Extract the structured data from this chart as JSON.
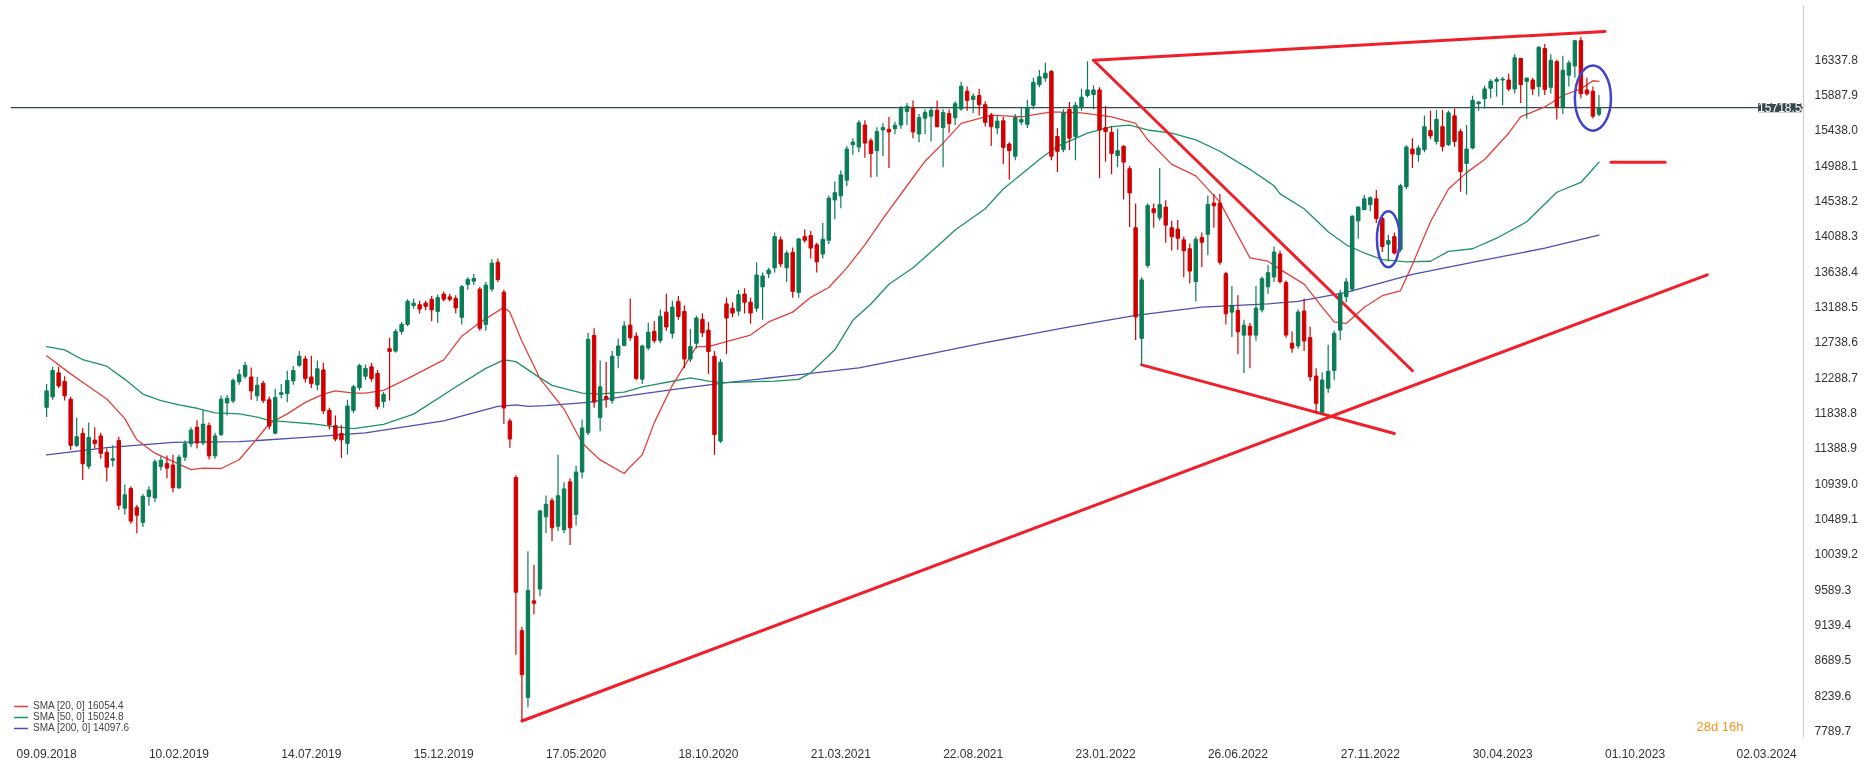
{
  "chart_data": {
    "type": "candlestick",
    "x": [
      "2018-09-09",
      "2018-09-16",
      "2018-09-23",
      "2018-09-30",
      "2018-10-07",
      "2018-10-14",
      "2018-10-21",
      "2018-10-28",
      "2018-11-04",
      "2018-11-11",
      "2018-11-18",
      "2018-11-25",
      "2018-12-02",
      "2018-12-09",
      "2018-12-16",
      "2018-12-23",
      "2018-12-30",
      "2019-01-06",
      "2019-01-13",
      "2019-01-20",
      "2019-01-27",
      "2019-02-03",
      "2019-02-10",
      "2019-02-17",
      "2019-02-24",
      "2019-03-03",
      "2019-03-10",
      "2019-03-17",
      "2019-03-24",
      "2019-03-31",
      "2019-04-07",
      "2019-04-14",
      "2019-04-21",
      "2019-04-28",
      "2019-05-05",
      "2019-05-12",
      "2019-05-19",
      "2019-05-26",
      "2019-06-02",
      "2019-06-09",
      "2019-06-16",
      "2019-06-23",
      "2019-06-30",
      "2019-07-07",
      "2019-07-14",
      "2019-07-21",
      "2019-07-28",
      "2019-08-04",
      "2019-08-11",
      "2019-08-18",
      "2019-08-25",
      "2019-09-01",
      "2019-09-08",
      "2019-09-15",
      "2019-09-22",
      "2019-09-29",
      "2019-10-06",
      "2019-10-13",
      "2019-10-20",
      "2019-10-27",
      "2019-11-03",
      "2019-11-10",
      "2019-11-17",
      "2019-11-24",
      "2019-12-01",
      "2019-12-08",
      "2019-12-15",
      "2019-12-22",
      "2019-12-29",
      "2020-01-05",
      "2020-01-12",
      "2020-01-19",
      "2020-01-26",
      "2020-02-02",
      "2020-02-09",
      "2020-02-16",
      "2020-02-23",
      "2020-03-01",
      "2020-03-08",
      "2020-03-15",
      "2020-03-22",
      "2020-03-29",
      "2020-04-05",
      "2020-04-12",
      "2020-04-19",
      "2020-04-26",
      "2020-05-03",
      "2020-05-10",
      "2020-05-17",
      "2020-05-24",
      "2020-05-31",
      "2020-06-07",
      "2020-06-14",
      "2020-06-21",
      "2020-06-28",
      "2020-07-05",
      "2020-07-12",
      "2020-07-19",
      "2020-07-26",
      "2020-08-02",
      "2020-08-09",
      "2020-08-16",
      "2020-08-23",
      "2020-08-30",
      "2020-09-06",
      "2020-09-13",
      "2020-09-20",
      "2020-09-27",
      "2020-10-04",
      "2020-10-11",
      "2020-10-18",
      "2020-10-25",
      "2020-11-01",
      "2020-11-08",
      "2020-11-15",
      "2020-11-22",
      "2020-11-29",
      "2020-12-06",
      "2020-12-13",
      "2020-12-20",
      "2020-12-27",
      "2021-01-03",
      "2021-01-10",
      "2021-01-17",
      "2021-01-24",
      "2021-01-31",
      "2021-02-07",
      "2021-02-14",
      "2021-02-21",
      "2021-02-28",
      "2021-03-07",
      "2021-03-14",
      "2021-03-21",
      "2021-03-28",
      "2021-04-04",
      "2021-04-11",
      "2021-04-18",
      "2021-04-25",
      "2021-05-02",
      "2021-05-09",
      "2021-05-16",
      "2021-05-23",
      "2021-05-30",
      "2021-06-06",
      "2021-06-13",
      "2021-06-20",
      "2021-06-27",
      "2021-07-04",
      "2021-07-11",
      "2021-07-18",
      "2021-07-25",
      "2021-08-01",
      "2021-08-08",
      "2021-08-15",
      "2021-08-22",
      "2021-08-29",
      "2021-09-05",
      "2021-09-12",
      "2021-09-19",
      "2021-09-26",
      "2021-10-03",
      "2021-10-10",
      "2021-10-17",
      "2021-10-24",
      "2021-10-31",
      "2021-11-07",
      "2021-11-14",
      "2021-11-21",
      "2021-11-28",
      "2021-12-05",
      "2021-12-12",
      "2021-12-19",
      "2021-12-26",
      "2022-01-02",
      "2022-01-09",
      "2022-01-16",
      "2022-01-23",
      "2022-01-30",
      "2022-02-06",
      "2022-02-13",
      "2022-02-20",
      "2022-02-27",
      "2022-03-06",
      "2022-03-13",
      "2022-03-20",
      "2022-03-27",
      "2022-04-03",
      "2022-04-10",
      "2022-04-17",
      "2022-04-24",
      "2022-05-01",
      "2022-05-08",
      "2022-05-15",
      "2022-05-22",
      "2022-05-29",
      "2022-06-05",
      "2022-06-12",
      "2022-06-19",
      "2022-06-26",
      "2022-07-03",
      "2022-07-10",
      "2022-07-17",
      "2022-07-24",
      "2022-07-31",
      "2022-08-07",
      "2022-08-14",
      "2022-08-21",
      "2022-08-28",
      "2022-09-04",
      "2022-09-11",
      "2022-09-18",
      "2022-09-25",
      "2022-10-02",
      "2022-10-09",
      "2022-10-16",
      "2022-10-23",
      "2022-10-30",
      "2022-11-06",
      "2022-11-13",
      "2022-11-20",
      "2022-11-27",
      "2022-12-04",
      "2022-12-11",
      "2022-12-18",
      "2022-12-25",
      "2023-01-01",
      "2023-01-08",
      "2023-01-15",
      "2023-01-22",
      "2023-01-29",
      "2023-02-05",
      "2023-02-12",
      "2023-02-19",
      "2023-02-26",
      "2023-03-05",
      "2023-03-12",
      "2023-03-19",
      "2023-03-26",
      "2023-04-02",
      "2023-04-09",
      "2023-04-16",
      "2023-04-23",
      "2023-04-30",
      "2023-05-07",
      "2023-05-14",
      "2023-05-21",
      "2023-05-28",
      "2023-06-04",
      "2023-06-11",
      "2023-06-18",
      "2023-06-25",
      "2023-07-02",
      "2023-07-09",
      "2023-07-16",
      "2023-07-23",
      "2023-07-30",
      "2023-08-06",
      "2023-08-13",
      "2023-08-20"
    ],
    "ohlc": [
      [
        11904,
        12200,
        11780,
        12113
      ],
      [
        12037,
        12420,
        12000,
        12372
      ],
      [
        12343,
        12420,
        12150,
        12176
      ],
      [
        12234,
        12300,
        11990,
        12050
      ],
      [
        12008,
        12040,
        11360,
        11419
      ],
      [
        11420,
        11770,
        11400,
        11529
      ],
      [
        11570,
        11640,
        10980,
        11185
      ],
      [
        11155,
        11710,
        11120,
        11520
      ],
      [
        11486,
        11650,
        11380,
        11445
      ],
      [
        11540,
        11580,
        11250,
        11318
      ],
      [
        11330,
        11380,
        10960,
        11142
      ],
      [
        11230,
        11420,
        11150,
        11250
      ],
      [
        11480,
        11530,
        10600,
        10658
      ],
      [
        10620,
        10920,
        10540,
        10790
      ],
      [
        10870,
        10900,
        10420,
        10455
      ],
      [
        10630,
        10660,
        10300,
        10530
      ],
      [
        10440,
        10800,
        10380,
        10770
      ],
      [
        10770,
        10900,
        10650,
        10850
      ],
      [
        10750,
        11240,
        10700,
        11210
      ],
      [
        11150,
        11280,
        11100,
        11230
      ],
      [
        11190,
        11290,
        11000,
        11130
      ],
      [
        11170,
        11300,
        10820,
        10880
      ],
      [
        10880,
        11300,
        10860,
        11270
      ],
      [
        11270,
        11480,
        11220,
        11440
      ],
      [
        11440,
        11650,
        11400,
        11615
      ],
      [
        11650,
        11740,
        11380,
        11450
      ],
      [
        11450,
        11870,
        11420,
        11690
      ],
      [
        11670,
        11710,
        11240,
        11285
      ],
      [
        11285,
        11580,
        11250,
        11540
      ],
      [
        11557,
        12050,
        11540,
        12008
      ],
      [
        11960,
        12060,
        11800,
        12020
      ],
      [
        11985,
        12270,
        11960,
        12245
      ],
      [
        12230,
        12390,
        12190,
        12322
      ],
      [
        12300,
        12480,
        12270,
        12435
      ],
      [
        12290,
        12410,
        12000,
        12113
      ],
      [
        12050,
        12290,
        11980,
        12185
      ],
      [
        12210,
        12240,
        11960,
        11990
      ],
      [
        12000,
        12040,
        11620,
        11665
      ],
      [
        11575,
        12140,
        11560,
        12030
      ],
      [
        12068,
        12200,
        12020,
        12090
      ],
      [
        12080,
        12370,
        11970,
        12245
      ],
      [
        12240,
        12430,
        12190,
        12372
      ],
      [
        12440,
        12620,
        12420,
        12555
      ],
      [
        12520,
        12560,
        12220,
        12270
      ],
      [
        12290,
        12560,
        12150,
        12205
      ],
      [
        12190,
        12500,
        12120,
        12395
      ],
      [
        12380,
        12470,
        11820,
        11860
      ],
      [
        11865,
        11900,
        11620,
        11680
      ],
      [
        11670,
        11800,
        11470,
        11500
      ],
      [
        11570,
        11680,
        11260,
        11490
      ],
      [
        11445,
        12000,
        11300,
        11920
      ],
      [
        11865,
        12190,
        11830,
        12165
      ],
      [
        12155,
        12460,
        12120,
        12435
      ],
      [
        12300,
        12450,
        12250,
        12400
      ],
      [
        12420,
        12470,
        12230,
        12272
      ],
      [
        12335,
        12380,
        11880,
        11912
      ],
      [
        11977,
        12100,
        11900,
        12068
      ],
      [
        12650,
        12790,
        11990,
        12615
      ],
      [
        12620,
        12900,
        12600,
        12870
      ],
      [
        12870,
        12990,
        12830,
        12960
      ],
      [
        12960,
        13280,
        12940,
        13255
      ],
      [
        13200,
        13290,
        13160,
        13230
      ],
      [
        13210,
        13260,
        13100,
        13155
      ],
      [
        13230,
        13260,
        13140,
        13190
      ],
      [
        13280,
        13320,
        13000,
        13145
      ],
      [
        13125,
        13340,
        12980,
        13300
      ],
      [
        13345,
        13380,
        13250,
        13280
      ],
      [
        13310,
        13350,
        13250,
        13280
      ],
      [
        13290,
        13330,
        13100,
        13170
      ],
      [
        13050,
        13460,
        12960,
        13440
      ],
      [
        13470,
        13560,
        13400,
        13530
      ],
      [
        13510,
        13600,
        13460,
        13545
      ],
      [
        13410,
        13440,
        12880,
        12910
      ],
      [
        12960,
        13500,
        12880,
        13460
      ],
      [
        13410,
        13790,
        13380,
        13740
      ],
      [
        13750,
        13800,
        13500,
        13530
      ],
      [
        13370,
        13400,
        11690,
        11895
      ],
      [
        11730,
        11760,
        11390,
        11500
      ],
      [
        11010,
        11040,
        8755,
        9550
      ],
      [
        9060,
        9110,
        7910,
        8500
      ],
      [
        8210,
        10070,
        8085,
        9572
      ],
      [
        9440,
        9900,
        9270,
        9410
      ],
      [
        9590,
        10600,
        9500,
        10585
      ],
      [
        10510,
        10780,
        10300,
        10670
      ],
      [
        10715,
        10750,
        10200,
        10370
      ],
      [
        10390,
        11300,
        10330,
        10778
      ],
      [
        10345,
        10950,
        10300,
        10865
      ],
      [
        10955,
        11000,
        10150,
        10370
      ],
      [
        10540,
        11160,
        10400,
        11080
      ],
      [
        11080,
        11750,
        11000,
        11640
      ],
      [
        11580,
        12850,
        11550,
        12770
      ],
      [
        12820,
        12910,
        11900,
        11970
      ],
      [
        11775,
        12500,
        11600,
        12165
      ],
      [
        12040,
        12480,
        11900,
        12010
      ],
      [
        11990,
        12620,
        11950,
        12555
      ],
      [
        12565,
        12780,
        12400,
        12685
      ],
      [
        12690,
        13000,
        12680,
        12940
      ],
      [
        12950,
        13290,
        12750,
        12790
      ],
      [
        12810,
        12860,
        12250,
        12272
      ],
      [
        12262,
        12700,
        12200,
        12685
      ],
      [
        12660,
        12980,
        12630,
        12860
      ],
      [
        12870,
        13000,
        12720,
        12755
      ],
      [
        12755,
        13150,
        12720,
        13060
      ],
      [
        13116,
        13350,
        12880,
        12927
      ],
      [
        12845,
        13260,
        12780,
        13179
      ],
      [
        13250,
        13320,
        13020,
        13062
      ],
      [
        13124,
        13200,
        12400,
        12519
      ],
      [
        12519,
        12900,
        12480,
        12677
      ],
      [
        12719,
        13070,
        12650,
        13041
      ],
      [
        13024,
        13100,
        12800,
        12853
      ],
      [
        12886,
        12990,
        12330,
        12615
      ],
      [
        12552,
        12620,
        11298,
        11557
      ],
      [
        11474,
        12520,
        11450,
        12477
      ],
      [
        13221,
        13300,
        12580,
        13041
      ],
      [
        13166,
        13240,
        13050,
        13104
      ],
      [
        13129,
        13400,
        13070,
        13338
      ],
      [
        13346,
        13420,
        13100,
        13242
      ],
      [
        13242,
        13300,
        12970,
        13104
      ],
      [
        13166,
        13750,
        13120,
        13588
      ],
      [
        13438,
        13620,
        13020,
        13576
      ],
      [
        13605,
        13680,
        13550,
        13651
      ],
      [
        13680,
        14130,
        13620,
        14077
      ],
      [
        14036,
        14080,
        13690,
        13730
      ],
      [
        13680,
        13900,
        13500,
        13868
      ],
      [
        13877,
        13940,
        13300,
        13380
      ],
      [
        13367,
        14060,
        13300,
        14048
      ],
      [
        14077,
        14170,
        14000,
        14031
      ],
      [
        14090,
        14150,
        13800,
        13931
      ],
      [
        13973,
        14000,
        13620,
        13756
      ],
      [
        13856,
        14250,
        13800,
        14044
      ],
      [
        14031,
        14600,
        13980,
        14566
      ],
      [
        14545,
        14780,
        14300,
        14637
      ],
      [
        14596,
        14920,
        14440,
        14863
      ],
      [
        14796,
        15230,
        14720,
        15193
      ],
      [
        15247,
        15330,
        15120,
        15281
      ],
      [
        15218,
        15560,
        15150,
        15527
      ],
      [
        15498,
        15560,
        15080,
        15268
      ],
      [
        15298,
        15330,
        14830,
        15135
      ],
      [
        15172,
        15470,
        14840,
        15415
      ],
      [
        15436,
        15520,
        15100,
        15465
      ],
      [
        15444,
        15600,
        14950,
        15410
      ],
      [
        15452,
        15540,
        15380,
        15494
      ],
      [
        15498,
        15740,
        15450,
        15707
      ],
      [
        15669,
        15780,
        15500,
        15736
      ],
      [
        15707,
        15810,
        15330,
        15410
      ],
      [
        15385,
        15640,
        15280,
        15594
      ],
      [
        15586,
        15700,
        15380,
        15657
      ],
      [
        15611,
        15720,
        15290,
        15686
      ],
      [
        15686,
        15810,
        15470,
        15477
      ],
      [
        15465,
        15700,
        14960,
        15657
      ],
      [
        15644,
        15700,
        15400,
        15519
      ],
      [
        15590,
        15800,
        15500,
        15770
      ],
      [
        15703,
        16050,
        15680,
        15991
      ],
      [
        15929,
        15990,
        15680,
        15812
      ],
      [
        15824,
        15900,
        15650,
        15866
      ],
      [
        15874,
        15960,
        15620,
        15757
      ],
      [
        15757,
        15800,
        15480,
        15532
      ],
      [
        15624,
        15650,
        15230,
        15477
      ],
      [
        15461,
        15620,
        15380,
        15548
      ],
      [
        15552,
        15600,
        15000,
        15214
      ],
      [
        15256,
        15280,
        14800,
        15172
      ],
      [
        15101,
        15640,
        15050,
        15594
      ],
      [
        15536,
        15730,
        15500,
        15569
      ],
      [
        15507,
        15820,
        15460,
        15715
      ],
      [
        15749,
        16100,
        15700,
        16041
      ],
      [
        16012,
        16200,
        15980,
        16112
      ],
      [
        16096,
        16290,
        16050,
        16158
      ],
      [
        16179,
        16200,
        15050,
        15101
      ],
      [
        15352,
        15460,
        14900,
        15164
      ],
      [
        15185,
        15700,
        15150,
        15653
      ],
      [
        15695,
        15790,
        15180,
        15331
      ],
      [
        15352,
        15790,
        15050,
        15749
      ],
      [
        15720,
        15960,
        15680,
        15853
      ],
      [
        15874,
        16310,
        15850,
        15945
      ],
      [
        15887,
        16000,
        15700,
        15945
      ],
      [
        15945,
        15980,
        14820,
        15435
      ],
      [
        15465,
        15740,
        15030,
        15415
      ],
      [
        15406,
        15480,
        14870,
        15135
      ],
      [
        15110,
        15450,
        14960,
        15172
      ],
      [
        15227,
        15240,
        14550,
        15026
      ],
      [
        14942,
        14980,
        14200,
        14633
      ],
      [
        14190,
        14500,
        12760,
        13054
      ],
      [
        12782,
        13560,
        12440,
        13526
      ],
      [
        13710,
        14500,
        13680,
        14474
      ],
      [
        14432,
        14500,
        14190,
        14382
      ],
      [
        14316,
        14950,
        14280,
        14487
      ],
      [
        14453,
        14540,
        14000,
        14224
      ],
      [
        14190,
        14280,
        13900,
        14077
      ],
      [
        14173,
        14290,
        13910,
        14056
      ],
      [
        14036,
        14080,
        13560,
        13898
      ],
      [
        13923,
        13990,
        13480,
        13639
      ],
      [
        13505,
        14080,
        13250,
        14044
      ],
      [
        14065,
        14130,
        13690,
        14006
      ],
      [
        14107,
        14600,
        13840,
        14487
      ],
      [
        14504,
        14620,
        14190,
        14470
      ],
      [
        14504,
        14620,
        13720,
        13751
      ],
      [
        13605,
        13630,
        12960,
        13095
      ],
      [
        13116,
        13450,
        12800,
        13200
      ],
      [
        13137,
        13330,
        12580,
        12865
      ],
      [
        12823,
        13020,
        12340,
        12949
      ],
      [
        12936,
        12980,
        12400,
        12823
      ],
      [
        12823,
        13450,
        12750,
        13166
      ],
      [
        13145,
        13570,
        13110,
        13542
      ],
      [
        13438,
        13720,
        13350,
        13618
      ],
      [
        13563,
        13950,
        13500,
        13881
      ],
      [
        13856,
        13900,
        13480,
        13505
      ],
      [
        13492,
        13520,
        12790,
        12824
      ],
      [
        12719,
        12870,
        12600,
        12657
      ],
      [
        12686,
        13150,
        12650,
        13117
      ],
      [
        13129,
        13290,
        12620,
        12749
      ],
      [
        12791,
        12930,
        12240,
        12293
      ],
      [
        12302,
        12400,
        11830,
        11955
      ],
      [
        11842,
        12350,
        11820,
        12252
      ],
      [
        12147,
        12700,
        12090,
        12364
      ],
      [
        12373,
        12880,
        12250,
        12845
      ],
      [
        12887,
        13400,
        12760,
        13355
      ],
      [
        13313,
        13550,
        13240,
        13501
      ],
      [
        13409,
        14350,
        13380,
        14337
      ],
      [
        14278,
        14460,
        14050,
        14454
      ],
      [
        14420,
        14610,
        14420,
        14558
      ],
      [
        14483,
        14590,
        14400,
        14571
      ],
      [
        14558,
        14670,
        14250,
        14307
      ],
      [
        14307,
        14330,
        13880,
        13952
      ],
      [
        13981,
        14100,
        13760,
        14027
      ],
      [
        14077,
        14130,
        13850,
        13869
      ],
      [
        13910,
        14750,
        13880,
        14725
      ],
      [
        14713,
        15240,
        14680,
        15218
      ],
      [
        15193,
        15330,
        14950,
        15130
      ],
      [
        15122,
        15240,
        15030,
        15206
      ],
      [
        15185,
        15620,
        15150,
        15477
      ],
      [
        15427,
        15680,
        15320,
        15360
      ],
      [
        15289,
        15690,
        15250,
        15569
      ],
      [
        15477,
        15690,
        15160,
        15227
      ],
      [
        15248,
        15680,
        15230,
        15653
      ],
      [
        15615,
        15710,
        15220,
        15289
      ],
      [
        15415,
        15450,
        14650,
        14905
      ],
      [
        15009,
        15500,
        14610,
        15193
      ],
      [
        15206,
        15870,
        15190,
        15812
      ],
      [
        15770,
        15800,
        15680,
        15791
      ],
      [
        15833,
        16000,
        15710,
        15958
      ],
      [
        15966,
        16080,
        15840,
        16054
      ],
      [
        16054,
        16110,
        15860,
        16079
      ],
      [
        16071,
        16110,
        15750,
        16083
      ],
      [
        16071,
        16150,
        15930,
        15958
      ],
      [
        15958,
        16400,
        15900,
        16355
      ],
      [
        16347,
        16350,
        15780,
        16012
      ],
      [
        16054,
        16100,
        15580,
        16096
      ],
      [
        16071,
        16100,
        15880,
        15958
      ],
      [
        15987,
        16500,
        15860,
        16489
      ],
      [
        16472,
        16530,
        15880,
        15950
      ],
      [
        15979,
        16400,
        15900,
        16322
      ],
      [
        16305,
        16330,
        15570,
        15728
      ],
      [
        15728,
        16380,
        15640,
        16196
      ],
      [
        16133,
        16320,
        15990,
        16288
      ],
      [
        16250,
        16580,
        16100,
        16572
      ],
      [
        16572,
        16620,
        15840,
        15895
      ],
      [
        15945,
        16100,
        15870,
        15895
      ],
      [
        15929,
        15990,
        15580,
        15611
      ],
      [
        15636,
        15880,
        15610,
        15718.5
      ]
    ],
    "series": [
      {
        "type": "line",
        "name": "SMA [200, 0] 14097.6",
        "color": "#4a4fb0",
        "x": [
          "2018-09-09",
          "2018-11-18",
          "2019-02-03",
          "2019-04-21",
          "2019-07-07",
          "2019-09-15",
          "2019-12-15",
          "2020-02-16",
          "2020-03-08",
          "2020-03-22",
          "2020-04-12",
          "2020-05-31",
          "2020-07-12",
          "2020-09-06",
          "2020-11-08",
          "2021-01-24",
          "2021-04-11",
          "2021-06-27",
          "2021-09-05",
          "2021-12-12",
          "2022-02-27",
          "2022-05-15",
          "2022-07-31",
          "2022-09-04",
          "2022-10-30",
          "2023-01-15",
          "2023-04-02",
          "2023-06-18",
          "2023-08-20"
        ],
        "values": [
          11298,
          11390,
          11457,
          11466,
          11520,
          11579,
          11731,
          11917,
          11934,
          11917,
          11925,
          11968,
          12042,
          12128,
          12218,
          12310,
          12406,
          12573,
          12728,
          12928,
          13074,
          13179,
          13221,
          13254,
          13367,
          13597,
          13764,
          13931,
          14097.6
        ]
      },
      {
        "type": "line",
        "name": "SMA [50, 0] 15024.8",
        "color": "#1f9363",
        "x": [
          "2018-09-09",
          "2018-09-30",
          "2018-10-21",
          "2018-11-18",
          "2018-12-09",
          "2018-12-30",
          "2019-01-20",
          "2019-02-10",
          "2019-03-03",
          "2019-03-24",
          "2019-04-21",
          "2019-05-12",
          "2019-05-26",
          "2019-06-23",
          "2019-07-14",
          "2019-08-11",
          "2019-09-01",
          "2019-10-06",
          "2019-11-10",
          "2019-12-29",
          "2020-02-02",
          "2020-02-23",
          "2020-03-08",
          "2020-04-05",
          "2020-04-19",
          "2020-05-24",
          "2020-06-14",
          "2020-07-12",
          "2020-08-02",
          "2020-08-16",
          "2020-09-06",
          "2020-09-27",
          "2020-10-18",
          "2020-11-08",
          "2021-01-03",
          "2021-01-31",
          "2021-02-14",
          "2021-03-14",
          "2021-04-04",
          "2021-04-25",
          "2021-05-16",
          "2021-06-13",
          "2021-07-11",
          "2021-08-01",
          "2021-09-05",
          "2021-09-26",
          "2021-11-07",
          "2021-11-28",
          "2022-01-02",
          "2022-01-30",
          "2022-02-20",
          "2022-03-13",
          "2022-04-10",
          "2022-05-08",
          "2022-06-05",
          "2022-07-10",
          "2022-08-07",
          "2022-08-14",
          "2022-09-11",
          "2022-10-09",
          "2022-10-30",
          "2022-11-20",
          "2022-12-11",
          "2023-01-08",
          "2023-02-05",
          "2023-02-26",
          "2023-03-26",
          "2023-04-23",
          "2023-05-28",
          "2023-07-02",
          "2023-07-30",
          "2023-08-20"
        ],
        "values": [
          12677,
          12636,
          12510,
          12427,
          12260,
          12072,
          11988,
          11934,
          11892,
          11833,
          11821,
          11779,
          11737,
          11712,
          11695,
          11654,
          11633,
          11688,
          11817,
          12163,
          12400,
          12508,
          12486,
          12279,
          12184,
          12085,
          12076,
          12098,
          12163,
          12193,
          12236,
          12280,
          12238,
          12218,
          12238,
          12259,
          12343,
          12636,
          13012,
          13220,
          13471,
          13680,
          13952,
          14161,
          14432,
          14683,
          15059,
          15227,
          15394,
          15477,
          15498,
          15435,
          15394,
          15310,
          15164,
          14934,
          14725,
          14621,
          14433,
          14140,
          13973,
          13869,
          13785,
          13756,
          13764,
          13890,
          13923,
          14057,
          14266,
          14642,
          14767,
          15024.8
        ]
      },
      {
        "type": "line",
        "name": "SMA [20, 0] 16054.4",
        "color": "#e2403c",
        "x": [
          "2018-09-09",
          "2018-10-07",
          "2018-10-28",
          "2018-11-18",
          "2018-12-09",
          "2018-12-23",
          "2019-01-13",
          "2019-02-03",
          "2019-02-24",
          "2019-03-10",
          "2019-03-31",
          "2019-04-21",
          "2019-05-12",
          "2019-05-26",
          "2019-06-16",
          "2019-07-07",
          "2019-07-28",
          "2019-08-11",
          "2019-09-01",
          "2019-09-15",
          "2019-10-06",
          "2019-11-03",
          "2019-12-15",
          "2020-01-05",
          "2020-01-26",
          "2020-02-23",
          "2020-03-01",
          "2020-03-15",
          "2020-04-05",
          "2020-05-03",
          "2020-05-24",
          "2020-06-14",
          "2020-07-12",
          "2020-07-19",
          "2020-08-02",
          "2020-08-16",
          "2020-09-06",
          "2020-10-04",
          "2020-10-18",
          "2020-11-08",
          "2020-12-06",
          "2020-12-27",
          "2021-01-24",
          "2021-02-14",
          "2021-03-07",
          "2021-03-28",
          "2021-04-18",
          "2021-05-09",
          "2021-06-06",
          "2021-06-27",
          "2021-07-18",
          "2021-08-08",
          "2021-09-05",
          "2021-09-12",
          "2021-10-17",
          "2021-11-21",
          "2021-12-26",
          "2022-01-30",
          "2022-02-27",
          "2022-03-13",
          "2022-04-10",
          "2022-05-08",
          "2022-06-05",
          "2022-07-10",
          "2022-07-31",
          "2022-08-14",
          "2022-09-11",
          "2022-10-02",
          "2022-10-16",
          "2022-10-30",
          "2022-11-20",
          "2022-12-11",
          "2023-01-01",
          "2023-01-15",
          "2023-02-05",
          "2023-02-26",
          "2023-03-19",
          "2023-04-09",
          "2023-05-07",
          "2023-05-21",
          "2023-06-18",
          "2023-07-09",
          "2023-07-30",
          "2023-08-13",
          "2023-08-20"
        ],
        "values": [
          12560,
          12330,
          12170,
          12010,
          11760,
          11490,
          11320,
          11215,
          11110,
          11130,
          11125,
          11236,
          11507,
          11695,
          11820,
          11967,
          12072,
          12113,
          12084,
          12085,
          12120,
          12270,
          12508,
          12810,
          12983,
          13177,
          13113,
          12746,
          12270,
          11882,
          11450,
          11234,
          11062,
          11148,
          11299,
          11709,
          12184,
          12677,
          12677,
          12740,
          12824,
          12991,
          13116,
          13304,
          13430,
          13680,
          13973,
          14307,
          14725,
          15038,
          15268,
          15519,
          15603,
          15624,
          15603,
          15665,
          15653,
          15603,
          15519,
          15310,
          14997,
          14850,
          14516,
          13806,
          13764,
          13660,
          13472,
          13179,
          12991,
          12970,
          13179,
          13325,
          13388,
          13722,
          14266,
          14683,
          14892,
          15060,
          15394,
          15603,
          15728,
          15874,
          15958,
          16062,
          16054.4
        ]
      },
      {
        "type": "line",
        "color": "#f0202a",
        "x": [
          "2020-03-15",
          "2023-12-24"
        ],
        "values": [
          7910,
          13590
        ]
      },
      {
        "type": "line",
        "color": "#f0202a",
        "x": [
          "2022-01-09",
          "2023-08-27"
        ],
        "values": [
          16323,
          16690
        ]
      },
      {
        "type": "line",
        "color": "#f0202a",
        "x": [
          "2022-01-09",
          "2023-01-15"
        ],
        "values": [
          16323,
          12370
        ]
      },
      {
        "type": "line",
        "color": "#f0202a",
        "x": [
          "2022-03-06",
          "2022-12-25"
        ],
        "values": [
          12444,
          11570
        ]
      },
      {
        "type": "line",
        "color": "#f0202a",
        "x": [
          "2023-09-03",
          "2023-11-05"
        ],
        "values": [
          15025,
          15025
        ]
      }
    ],
    "ref_lines": [
      {
        "axis": "y",
        "value": 15718.5,
        "label": "15718.5",
        "color": "#37474f"
      }
    ],
    "annotations": [
      "28d 16h"
    ],
    "xlim": [
      "2018-07-29",
      "2024-04-14"
    ],
    "xticks": [
      {
        "value": "2018-09-09",
        "label": "09.09.2018"
      },
      {
        "value": "2019-02-10",
        "label": "10.02.2019"
      },
      {
        "value": "2019-07-14",
        "label": "14.07.2019"
      },
      {
        "value": "2019-12-15",
        "label": "15.12.2019"
      },
      {
        "value": "2020-05-17",
        "label": "17.05.2020"
      },
      {
        "value": "2020-10-18",
        "label": "18.10.2020"
      },
      {
        "value": "2021-03-21",
        "label": "21.03.2021"
      },
      {
        "value": "2021-08-22",
        "label": "22.08.2021"
      },
      {
        "value": "2022-01-23",
        "label": "23.01.2022"
      },
      {
        "value": "2022-06-26",
        "label": "26.06.2022"
      },
      {
        "value": "2022-11-27",
        "label": "27.11.2022"
      },
      {
        "value": "2023-04-30",
        "label": "30.04.2023"
      },
      {
        "value": "2023-10-01",
        "label": "01.10.2023"
      },
      {
        "value": "2024-03-02",
        "label": "02.03.2024"
      }
    ],
    "ylim": [
      7700,
      17020
    ],
    "yticks": [
      16337.8,
      15887.9,
      {
        "value": 15438.0,
        "label": "15438.0"
      },
      14988.1,
      14538.2,
      14088.3,
      13638.4,
      13188.5,
      12738.6,
      12288.7,
      11838.8,
      11388.9,
      {
        "value": 10939.0,
        "label": "10939.0"
      },
      10489.1,
      10039.2,
      9589.3,
      9139.4,
      8689.5,
      8239.6,
      7789.7
    ],
    "legend": "bottom left"
  }
}
